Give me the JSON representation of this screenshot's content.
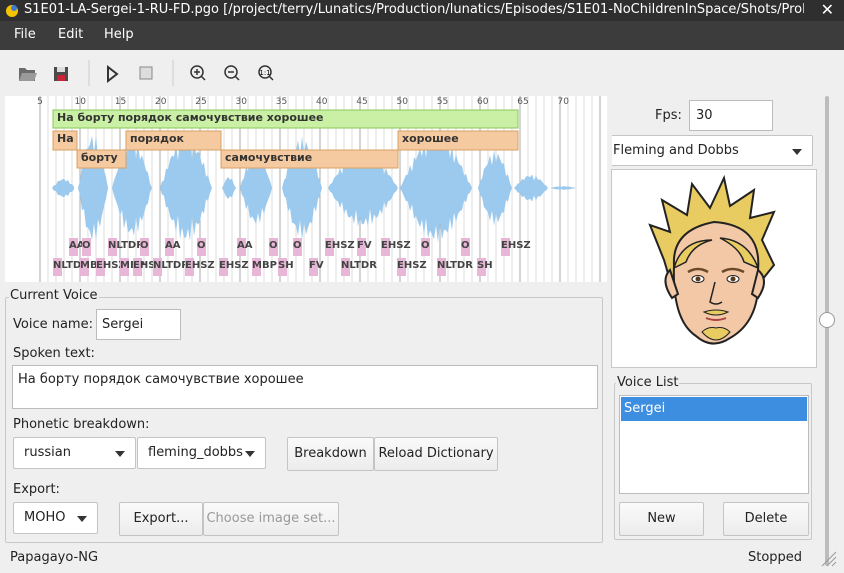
{
  "window": {
    "title": "S1E01-LA-Sergei-1-RU-FD.pgo [/project/terry/Lunatics/Production/lunatics/Episodes/S1E01-NoChildrenInSpace/Shots/Prol"
  },
  "menu": [
    "File",
    "Edit",
    "Help"
  ],
  "timeline": {
    "ruler": [
      5,
      10,
      15,
      20,
      25,
      30,
      35,
      40,
      45,
      50,
      55,
      60,
      65,
      70
    ],
    "phrase": "На борту порядок самочувствие хорошее",
    "words": [
      "На",
      "борту",
      "порядок",
      "самочувствие",
      "хорошее"
    ],
    "phonemes_upper": [
      "AA",
      "O",
      "NLTDR",
      "O",
      "AA",
      "O",
      "AA",
      "O",
      "O",
      "EHSZ",
      "FV",
      "EHSZ",
      "O",
      "O",
      "EHSZ"
    ],
    "phonemes_lower": [
      "NLTDR",
      "MBP",
      "EHSZ",
      "MBP",
      "EHSZ",
      "NLTDR",
      "EHSZ",
      "EHSZ",
      "MBP",
      "SH",
      "FV",
      "NLTDR",
      "EHSZ",
      "NLTDR",
      "SH"
    ]
  },
  "current_voice": {
    "group_title": "Current Voice",
    "voice_name_label": "Voice name:",
    "voice_name": "Sergei",
    "spoken_text_label": "Spoken text:",
    "spoken_text": "На борту порядок самочувствие хорошее",
    "phonetic_label": "Phonetic breakdown:",
    "language": "russian",
    "phoneme_set": "fleming_dobbs",
    "breakdown_button": "Breakdown",
    "reload_button": "Reload Dictionary",
    "export_label": "Export:",
    "export_format": "MOHO",
    "export_button": "Export...",
    "image_set_button": "Choose image set..."
  },
  "side": {
    "fps_label": "Fps:",
    "fps": 30,
    "mouth": "Fleming and Dobbs",
    "voice_list_title": "Voice List",
    "voices": [
      "Sergei"
    ],
    "new_button": "New",
    "delete_button": "Delete"
  },
  "status": {
    "left": "Papagayo-NG",
    "right": "Stopped"
  }
}
